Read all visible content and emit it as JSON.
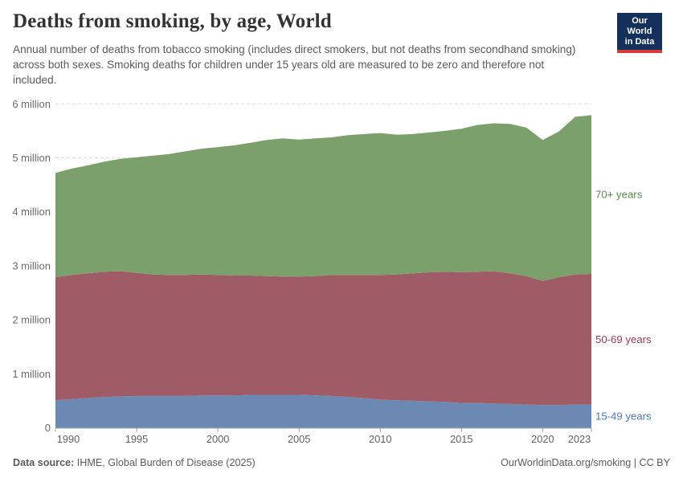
{
  "header": {
    "title": "Deaths from smoking, by age, World",
    "subtitle": "Annual number of deaths from tobacco smoking (includes direct smokers, but not deaths from secondhand smoking) across both sexes. Smoking deaths for children under 15 years old are measured to be zero and therefore not included.",
    "logo": {
      "line1": "Our World",
      "line2": "in Data",
      "bg_color": "#14315c",
      "accent_color": "#d93a3a"
    }
  },
  "chart_data": {
    "type": "area",
    "stacked": true,
    "title": "Deaths from smoking, by age, World",
    "xlabel": "",
    "ylabel": "",
    "unit": "million deaths",
    "ylim": [
      0,
      6
    ],
    "xlim": [
      1990,
      2023
    ],
    "grid": "horizontal-dashed",
    "legend_position": "right-of-plot",
    "x": [
      1990,
      1991,
      1992,
      1993,
      1994,
      1995,
      1996,
      1997,
      1998,
      1999,
      2000,
      2001,
      2002,
      2003,
      2004,
      2005,
      2006,
      2007,
      2008,
      2009,
      2010,
      2011,
      2012,
      2013,
      2014,
      2015,
      2016,
      2017,
      2018,
      2019,
      2020,
      2021,
      2022,
      2023
    ],
    "series": [
      {
        "name": "15-49 years",
        "color": "#607fae",
        "label_color": "#4d76b8",
        "values": [
          0.51,
          0.53,
          0.55,
          0.57,
          0.58,
          0.59,
          0.59,
          0.59,
          0.59,
          0.6,
          0.6,
          0.6,
          0.61,
          0.61,
          0.61,
          0.61,
          0.6,
          0.59,
          0.57,
          0.55,
          0.52,
          0.51,
          0.5,
          0.49,
          0.48,
          0.46,
          0.46,
          0.45,
          0.44,
          0.43,
          0.42,
          0.42,
          0.43,
          0.43
        ]
      },
      {
        "name": "50-69 years",
        "color": "#984e59",
        "label_color": "#9c3a55",
        "values": [
          2.28,
          2.3,
          2.31,
          2.32,
          2.32,
          2.28,
          2.25,
          2.24,
          2.24,
          2.24,
          2.23,
          2.22,
          2.21,
          2.2,
          2.19,
          2.19,
          2.21,
          2.24,
          2.26,
          2.28,
          2.31,
          2.33,
          2.36,
          2.39,
          2.41,
          2.42,
          2.43,
          2.45,
          2.42,
          2.38,
          2.3,
          2.37,
          2.41,
          2.42
        ]
      },
      {
        "name": "70+ years",
        "color": "#71985f",
        "label_color": "#568a4d",
        "values": [
          1.93,
          1.97,
          2.0,
          2.04,
          2.08,
          2.14,
          2.2,
          2.24,
          2.29,
          2.33,
          2.37,
          2.41,
          2.46,
          2.52,
          2.56,
          2.54,
          2.55,
          2.55,
          2.59,
          2.61,
          2.63,
          2.59,
          2.58,
          2.59,
          2.61,
          2.66,
          2.72,
          2.74,
          2.77,
          2.75,
          2.61,
          2.7,
          2.92,
          2.94
        ]
      }
    ],
    "yticks": [
      {
        "value": 0,
        "label": "0"
      },
      {
        "value": 1,
        "label": "1 million"
      },
      {
        "value": 2,
        "label": "2 million"
      },
      {
        "value": 3,
        "label": "3 million"
      },
      {
        "value": 4,
        "label": "4 million"
      },
      {
        "value": 5,
        "label": "5 million"
      },
      {
        "value": 6,
        "label": "6 million"
      }
    ],
    "xticks": [
      {
        "value": 1990,
        "label": "1990"
      },
      {
        "value": 1995,
        "label": "1995"
      },
      {
        "value": 2000,
        "label": "2000"
      },
      {
        "value": 2005,
        "label": "2005"
      },
      {
        "value": 2010,
        "label": "2010"
      },
      {
        "value": 2015,
        "label": "2015"
      },
      {
        "value": 2020,
        "label": "2020"
      },
      {
        "value": 2023,
        "label": "2023"
      }
    ]
  },
  "footer": {
    "source_label": "Data source:",
    "source_text": " IHME, Global Burden of Disease (2025)",
    "link_text": "OurWorldinData.org/smoking | CC BY"
  }
}
